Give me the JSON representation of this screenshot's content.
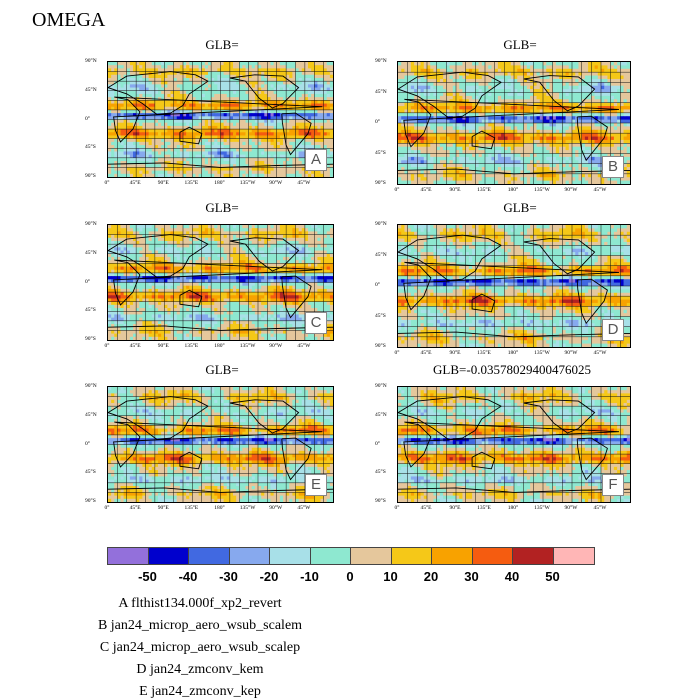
{
  "title": "OMEGA",
  "chart_data": [
    {
      "type": "heatmap",
      "panel_label": "A",
      "title": "GLB=",
      "x_ticks": [
        "0°",
        "45°E",
        "90°E",
        "135°E",
        "180°",
        "135°W",
        "90°W",
        "45°W"
      ],
      "y_ticks": [
        "90°N",
        "45°N",
        "0°",
        "45°S",
        "90°S"
      ],
      "xlim": [
        0,
        360
      ],
      "ylim": [
        -90,
        90
      ]
    },
    {
      "type": "heatmap",
      "panel_label": "B",
      "title": "GLB=",
      "x_ticks": [
        "0°",
        "45°E",
        "90°E",
        "135°E",
        "180°",
        "135°W",
        "90°W",
        "45°W"
      ],
      "y_ticks": [
        "90°N",
        "45°N",
        "0°",
        "45°S",
        "90°S"
      ],
      "xlim": [
        0,
        360
      ],
      "ylim": [
        -90,
        90
      ]
    },
    {
      "type": "heatmap",
      "panel_label": "C",
      "title": "GLB=",
      "x_ticks": [
        "0°",
        "45°E",
        "90°E",
        "135°E",
        "180°",
        "135°W",
        "90°W",
        "45°W"
      ],
      "y_ticks": [
        "90°N",
        "45°N",
        "0°",
        "45°S",
        "90°S"
      ],
      "xlim": [
        0,
        360
      ],
      "ylim": [
        -90,
        90
      ]
    },
    {
      "type": "heatmap",
      "panel_label": "D",
      "title": "GLB=",
      "x_ticks": [
        "0°",
        "45°E",
        "90°E",
        "135°E",
        "180°",
        "135°W",
        "90°W",
        "45°W"
      ],
      "y_ticks": [
        "90°N",
        "45°N",
        "0°",
        "45°S",
        "90°S"
      ],
      "xlim": [
        0,
        360
      ],
      "ylim": [
        -90,
        90
      ]
    },
    {
      "type": "heatmap",
      "panel_label": "E",
      "title": "GLB=",
      "x_ticks": [
        "0°",
        "45°E",
        "90°E",
        "135°E",
        "180°",
        "135°W",
        "90°W",
        "45°W"
      ],
      "y_ticks": [
        "90°N",
        "45°N",
        "0°",
        "45°S",
        "90°S"
      ],
      "xlim": [
        0,
        360
      ],
      "ylim": [
        -90,
        90
      ]
    },
    {
      "type": "heatmap",
      "panel_label": "F",
      "title": "GLB=-0.03578029400476025",
      "x_ticks": [
        "0°",
        "45°E",
        "90°E",
        "135°E",
        "180°",
        "135°W",
        "90°W",
        "45°W"
      ],
      "y_ticks": [
        "90°N",
        "45°N",
        "0°",
        "45°S",
        "90°S"
      ],
      "xlim": [
        0,
        360
      ],
      "ylim": [
        -90,
        90
      ]
    }
  ],
  "colorbar": {
    "colors": [
      "#9370db",
      "#0000cd",
      "#4169e1",
      "#87a9ee",
      "#a8e0e8",
      "#8ee8d0",
      "#e5c79c",
      "#f5c818",
      "#f8a200",
      "#f55c10",
      "#b22222",
      "#ffb6b6"
    ],
    "labels": [
      "-50",
      "-40",
      "-30",
      "-20",
      "-10",
      "0",
      "10",
      "20",
      "30",
      "40",
      "50"
    ]
  },
  "legend": [
    "A  flthist134.000f_xp2_revert",
    "B  jan24_microp_aero_wsub_scalem",
    "C  jan24_microp_aero_wsub_scalep",
    "D  jan24_zmconv_kem",
    "E  jan24_zmconv_kep"
  ]
}
